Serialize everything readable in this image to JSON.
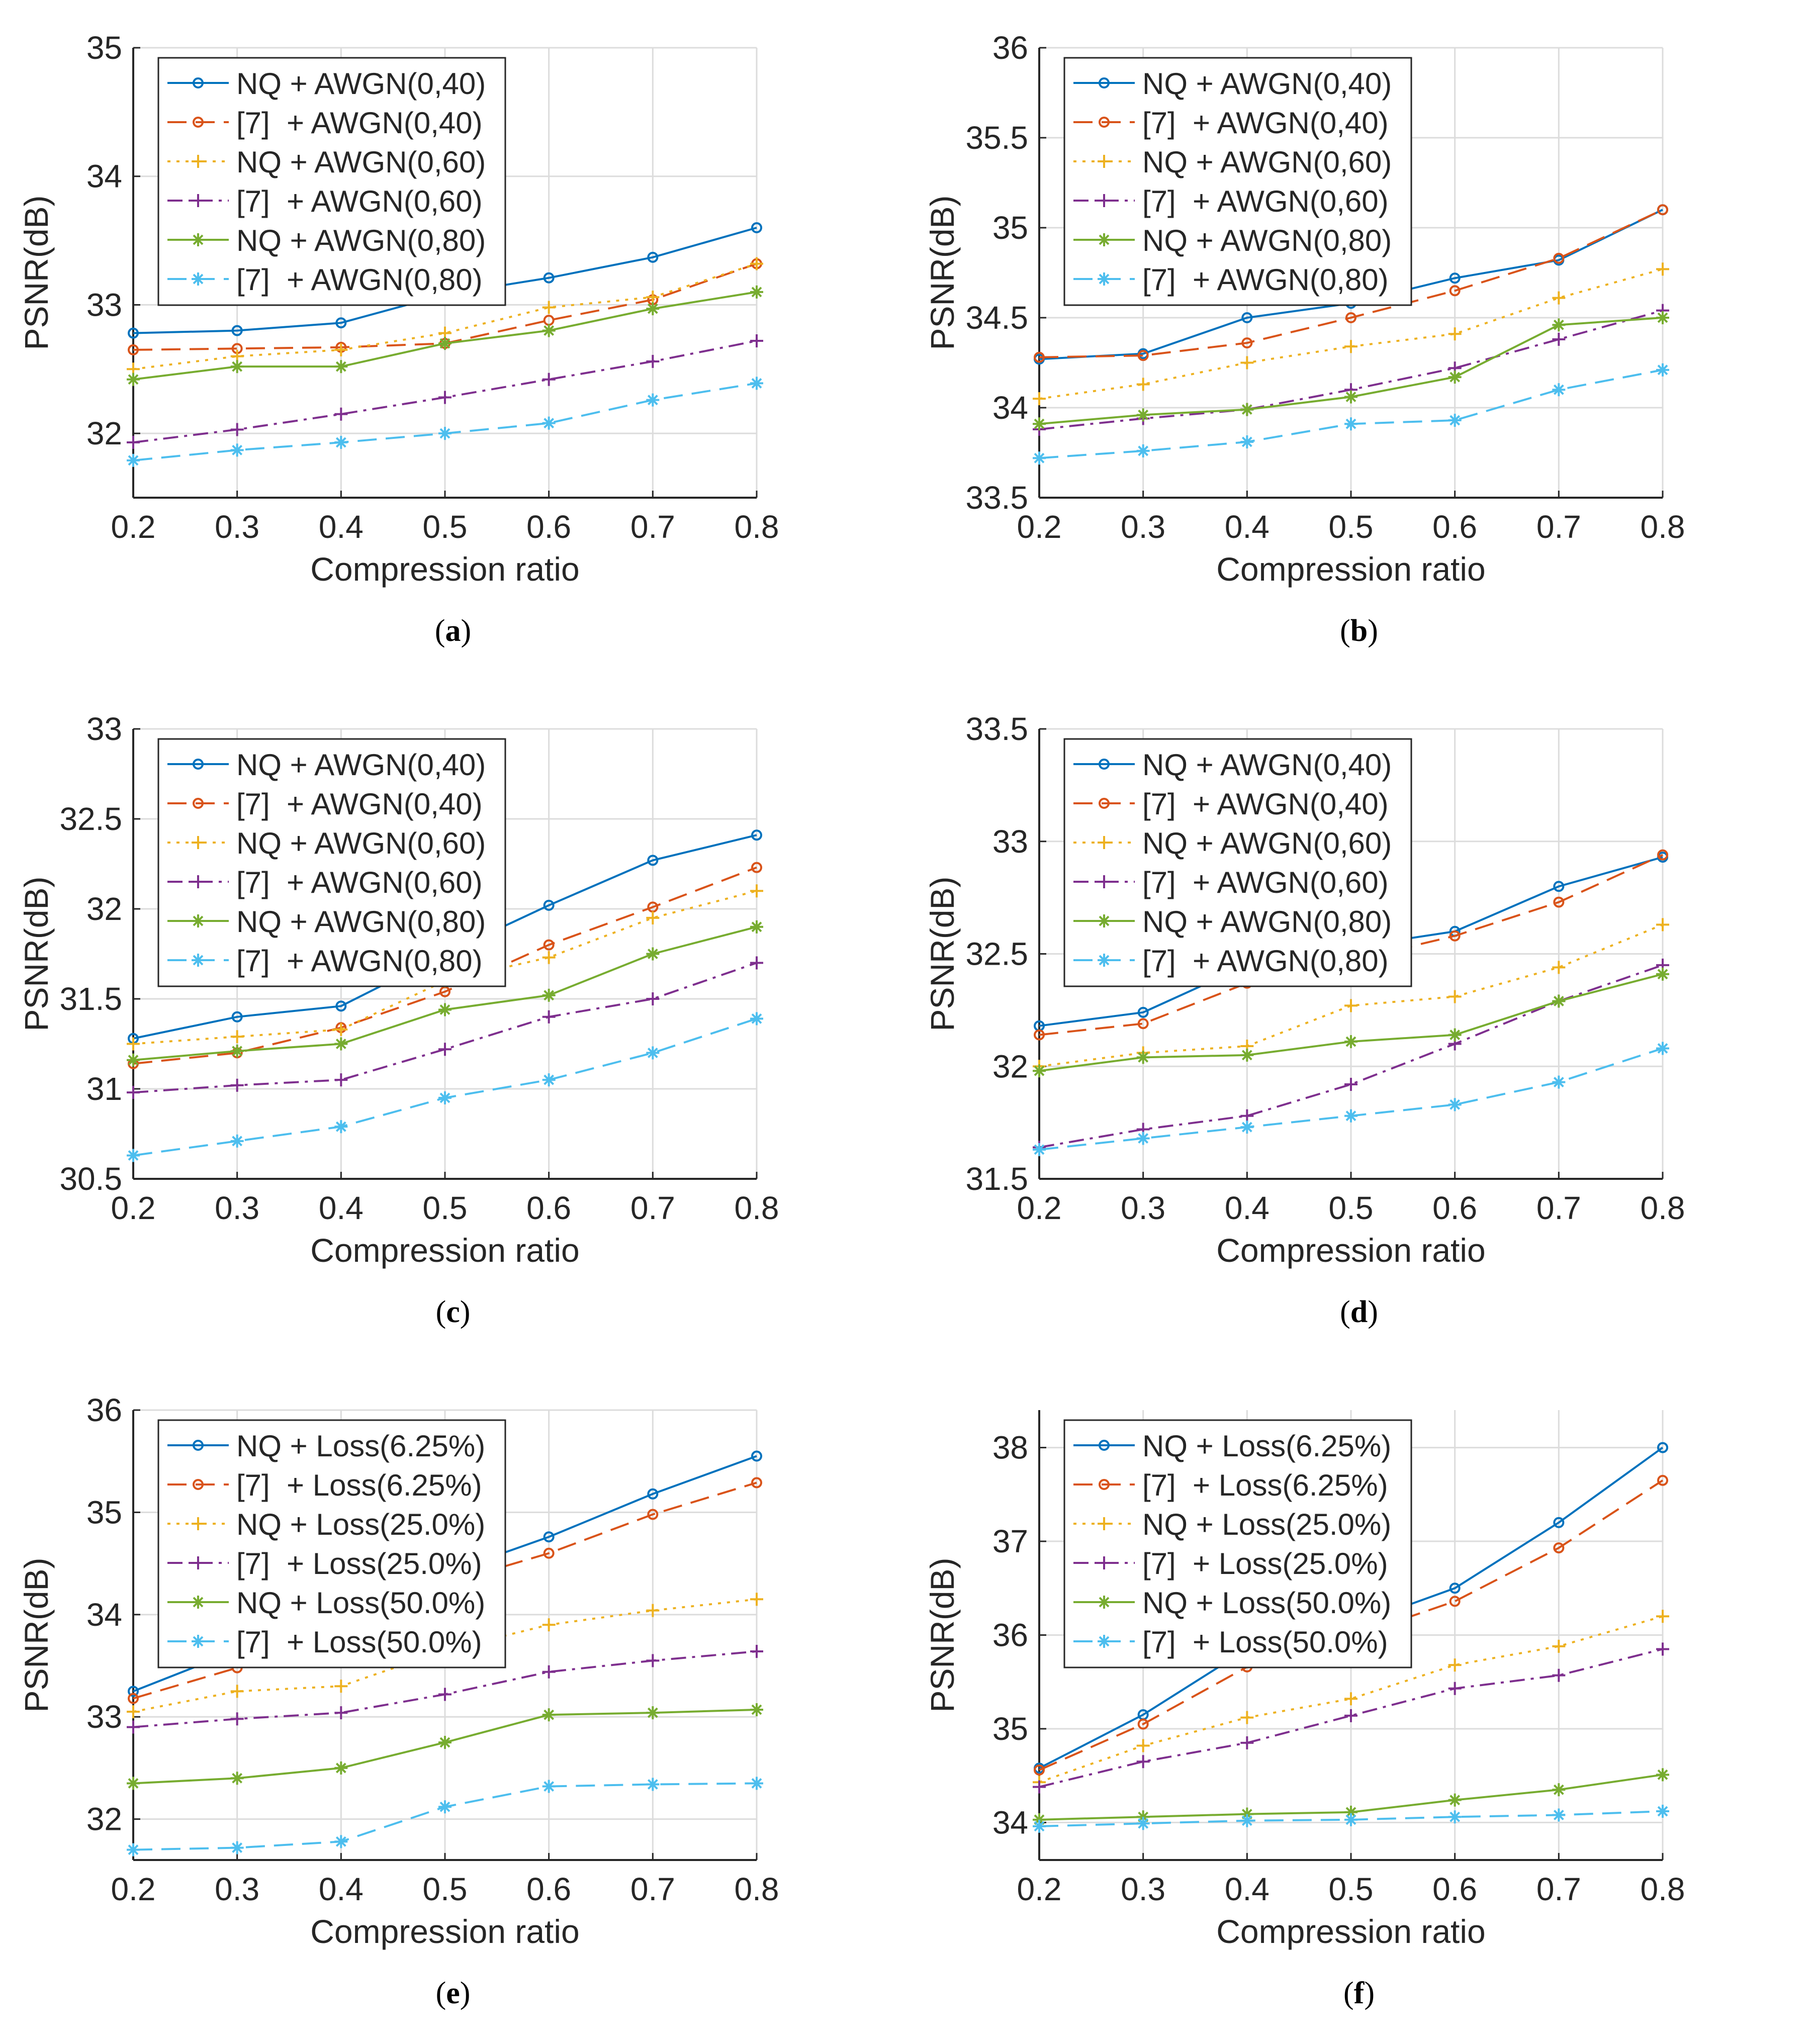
{
  "chart_data": [
    {
      "panel": "a",
      "type": "line",
      "xlabel": "Compression ratio",
      "ylabel": "PSNR(dB)",
      "xlim": [
        0.2,
        0.8
      ],
      "ylim": [
        31.5,
        35
      ],
      "xticks": [
        "0.2",
        "0.3",
        "0.4",
        "0.5",
        "0.6",
        "0.7",
        "0.8"
      ],
      "yticks": [
        "32",
        "33",
        "34",
        "35"
      ],
      "ytick_values": [
        32,
        33,
        34,
        35
      ],
      "grid": true,
      "legend_position": "top-left",
      "x": [
        0.2,
        0.3,
        0.4,
        0.5,
        0.6,
        0.7,
        0.8
      ],
      "series": [
        {
          "name": "NQ + AWGN(0,40)",
          "values": [
            32.78,
            32.8,
            32.86,
            33.08,
            33.21,
            33.37,
            33.6
          ]
        },
        {
          "name": "[7]  + AWGN(0,40)",
          "values": [
            32.65,
            32.66,
            32.67,
            32.7,
            32.88,
            33.04,
            33.32
          ]
        },
        {
          "name": "NQ + AWGN(0,60)",
          "values": [
            32.5,
            32.6,
            32.65,
            32.78,
            32.98,
            33.06,
            33.32
          ]
        },
        {
          "name": "[7]  + AWGN(0,60)",
          "values": [
            31.93,
            32.03,
            32.15,
            32.28,
            32.42,
            32.56,
            32.72
          ]
        },
        {
          "name": "NQ + AWGN(0,80)",
          "values": [
            32.42,
            32.52,
            32.52,
            32.7,
            32.8,
            32.97,
            33.1
          ]
        },
        {
          "name": "[7]  + AWGN(0,80)",
          "values": [
            31.79,
            31.87,
            31.93,
            32.0,
            32.08,
            32.26,
            32.39
          ]
        }
      ]
    },
    {
      "panel": "b",
      "type": "line",
      "xlabel": "Compression ratio",
      "ylabel": "PSNR(dB)",
      "xlim": [
        0.2,
        0.8
      ],
      "ylim": [
        33.5,
        36
      ],
      "xticks": [
        "0.2",
        "0.3",
        "0.4",
        "0.5",
        "0.6",
        "0.7",
        "0.8"
      ],
      "yticks": [
        "33.5",
        "34",
        "34.5",
        "35",
        "35.5",
        "36"
      ],
      "ytick_values": [
        33.5,
        34,
        34.5,
        35,
        35.5,
        36
      ],
      "grid": true,
      "legend_position": "top-left",
      "x": [
        0.2,
        0.3,
        0.4,
        0.5,
        0.6,
        0.7,
        0.8
      ],
      "series": [
        {
          "name": "NQ + AWGN(0,40)",
          "values": [
            34.27,
            34.3,
            34.5,
            34.58,
            34.72,
            34.82,
            35.1
          ]
        },
        {
          "name": "[7]  + AWGN(0,40)",
          "values": [
            34.28,
            34.29,
            34.36,
            34.5,
            34.65,
            34.83,
            35.1
          ]
        },
        {
          "name": "NQ + AWGN(0,60)",
          "values": [
            34.05,
            34.13,
            34.25,
            34.34,
            34.41,
            34.61,
            34.77
          ]
        },
        {
          "name": "[7]  + AWGN(0,60)",
          "values": [
            33.88,
            33.94,
            33.99,
            34.1,
            34.22,
            34.38,
            34.54
          ]
        },
        {
          "name": "NQ + AWGN(0,80)",
          "values": [
            33.91,
            33.96,
            33.99,
            34.06,
            34.17,
            34.46,
            34.5
          ]
        },
        {
          "name": "[7]  + AWGN(0,80)",
          "values": [
            33.72,
            33.76,
            33.81,
            33.91,
            33.93,
            34.1,
            34.21
          ]
        }
      ]
    },
    {
      "panel": "c",
      "type": "line",
      "xlabel": "Compression ratio",
      "ylabel": "PSNR(dB)",
      "xlim": [
        0.2,
        0.8
      ],
      "ylim": [
        30.5,
        33
      ],
      "xticks": [
        "0.2",
        "0.3",
        "0.4",
        "0.5",
        "0.6",
        "0.7",
        "0.8"
      ],
      "yticks": [
        "30.5",
        "31",
        "31.5",
        "32",
        "32.5",
        "33"
      ],
      "ytick_values": [
        30.5,
        31,
        31.5,
        32,
        32.5,
        33
      ],
      "grid": true,
      "legend_position": "top-left",
      "x": [
        0.2,
        0.3,
        0.4,
        0.5,
        0.6,
        0.7,
        0.8
      ],
      "series": [
        {
          "name": "NQ + AWGN(0,40)",
          "values": [
            31.28,
            31.4,
            31.46,
            31.75,
            32.02,
            32.27,
            32.41
          ]
        },
        {
          "name": "[7]  + AWGN(0,40)",
          "values": [
            31.14,
            31.2,
            31.34,
            31.54,
            31.8,
            32.01,
            32.23
          ]
        },
        {
          "name": "NQ + AWGN(0,60)",
          "values": [
            31.25,
            31.29,
            31.33,
            31.6,
            31.73,
            31.95,
            32.1
          ]
        },
        {
          "name": "[7]  + AWGN(0,60)",
          "values": [
            30.98,
            31.02,
            31.05,
            31.22,
            31.4,
            31.5,
            31.7
          ]
        },
        {
          "name": "NQ + AWGN(0,80)",
          "values": [
            31.16,
            31.21,
            31.25,
            31.44,
            31.52,
            31.75,
            31.9
          ]
        },
        {
          "name": "[7]  + AWGN(0,80)",
          "values": [
            30.63,
            30.71,
            30.79,
            30.95,
            31.05,
            31.2,
            31.39
          ]
        }
      ]
    },
    {
      "panel": "d",
      "type": "line",
      "xlabel": "Compression ratio",
      "ylabel": "PSNR(dB)",
      "xlim": [
        0.2,
        0.8
      ],
      "ylim": [
        31.5,
        33.5
      ],
      "xticks": [
        "0.2",
        "0.3",
        "0.4",
        "0.5",
        "0.6",
        "0.7",
        "0.8"
      ],
      "yticks": [
        "31.5",
        "32",
        "32.5",
        "33",
        "33.5"
      ],
      "ytick_values": [
        31.5,
        32,
        32.5,
        33,
        33.5
      ],
      "grid": true,
      "legend_position": "top-left",
      "x": [
        0.2,
        0.3,
        0.4,
        0.5,
        0.6,
        0.7,
        0.8
      ],
      "series": [
        {
          "name": "NQ + AWGN(0,40)",
          "values": [
            32.18,
            32.24,
            32.45,
            32.53,
            32.6,
            32.8,
            32.93
          ]
        },
        {
          "name": "[7]  + AWGN(0,40)",
          "values": [
            32.14,
            32.19,
            32.37,
            32.47,
            32.58,
            32.73,
            32.94
          ]
        },
        {
          "name": "NQ + AWGN(0,60)",
          "values": [
            32.0,
            32.06,
            32.09,
            32.27,
            32.31,
            32.44,
            32.63
          ]
        },
        {
          "name": "[7]  + AWGN(0,60)",
          "values": [
            31.64,
            31.72,
            31.78,
            31.92,
            32.1,
            32.29,
            32.45
          ]
        },
        {
          "name": "NQ + AWGN(0,80)",
          "values": [
            31.98,
            32.04,
            32.05,
            32.11,
            32.14,
            32.29,
            32.41
          ]
        },
        {
          "name": "[7]  + AWGN(0,80)",
          "values": [
            31.63,
            31.68,
            31.73,
            31.78,
            31.83,
            31.93,
            32.08
          ]
        }
      ]
    },
    {
      "panel": "e",
      "type": "line",
      "xlabel": "Compression ratio",
      "ylabel": "PSNR(dB)",
      "xlim": [
        0.2,
        0.8
      ],
      "ylim": [
        31.6,
        36
      ],
      "xticks": [
        "0.2",
        "0.3",
        "0.4",
        "0.5",
        "0.6",
        "0.7",
        "0.8"
      ],
      "yticks": [
        "32",
        "33",
        "34",
        "35",
        "36"
      ],
      "ytick_values": [
        32,
        33,
        34,
        35,
        36
      ],
      "grid": true,
      "legend_position": "top-left",
      "x": [
        0.2,
        0.3,
        0.4,
        0.5,
        0.6,
        0.7,
        0.8
      ],
      "series": [
        {
          "name": "NQ + Loss(6.25%)",
          "values": [
            33.25,
            33.65,
            33.95,
            34.4,
            34.76,
            35.18,
            35.55
          ]
        },
        {
          "name": "[7]  + Loss(6.25%)",
          "values": [
            33.18,
            33.48,
            33.9,
            34.3,
            34.6,
            34.98,
            35.29
          ]
        },
        {
          "name": "NQ + Loss(25.0%)",
          "values": [
            33.05,
            33.25,
            33.3,
            33.65,
            33.9,
            34.04,
            34.15
          ]
        },
        {
          "name": "[7]  + Loss(25.0%)",
          "values": [
            32.9,
            32.98,
            33.04,
            33.22,
            33.44,
            33.55,
            33.64
          ]
        },
        {
          "name": "NQ + Loss(50.0%)",
          "values": [
            32.35,
            32.4,
            32.5,
            32.75,
            33.02,
            33.04,
            33.07
          ]
        },
        {
          "name": "[7]  + Loss(50.0%)",
          "values": [
            31.7,
            31.72,
            31.78,
            32.12,
            32.32,
            32.34,
            32.35
          ]
        }
      ]
    },
    {
      "panel": "f",
      "type": "line",
      "xlabel": "Compression ratio",
      "ylabel": "PSNR(dB)",
      "xlim": [
        0.2,
        0.8
      ],
      "ylim": [
        33.6,
        38.4
      ],
      "xticks": [
        "0.2",
        "0.3",
        "0.4",
        "0.5",
        "0.6",
        "0.7",
        "0.8"
      ],
      "yticks": [
        "34",
        "35",
        "36",
        "37",
        "38"
      ],
      "ytick_values": [
        34,
        35,
        36,
        37,
        38
      ],
      "grid": true,
      "legend_position": "top-left",
      "x": [
        0.2,
        0.3,
        0.4,
        0.5,
        0.6,
        0.7,
        0.8
      ],
      "series": [
        {
          "name": "NQ + Loss(6.25%)",
          "values": [
            34.58,
            35.15,
            35.85,
            36.1,
            36.5,
            37.2,
            38.0
          ]
        },
        {
          "name": "[7]  + Loss(6.25%)",
          "values": [
            34.56,
            35.05,
            35.66,
            35.98,
            36.36,
            36.93,
            37.65
          ]
        },
        {
          "name": "NQ + Loss(25.0%)",
          "values": [
            34.43,
            34.82,
            35.12,
            35.32,
            35.68,
            35.88,
            36.2
          ]
        },
        {
          "name": "[7]  + Loss(25.0%)",
          "values": [
            34.38,
            34.65,
            34.85,
            35.14,
            35.43,
            35.57,
            35.85
          ]
        },
        {
          "name": "NQ + Loss(50.0%)",
          "values": [
            34.03,
            34.06,
            34.09,
            34.11,
            34.24,
            34.35,
            34.51
          ]
        },
        {
          "name": "[7]  + Loss(50.0%)",
          "values": [
            33.96,
            33.99,
            34.02,
            34.03,
            34.06,
            34.08,
            34.12
          ]
        }
      ]
    }
  ],
  "series_styles": [
    {
      "color": "#0072BD",
      "dash": "solid",
      "marker": "circle"
    },
    {
      "color": "#D95319",
      "dash": "dashed",
      "marker": "circle"
    },
    {
      "color": "#EDB120",
      "dash": "dotted",
      "marker": "plus"
    },
    {
      "color": "#7E2F8E",
      "dash": "dashdot",
      "marker": "plus"
    },
    {
      "color": "#77AC30",
      "dash": "solid",
      "marker": "asterisk"
    },
    {
      "color": "#4DBEEE",
      "dash": "dashed",
      "marker": "asterisk"
    }
  ],
  "captions": {
    "a": "a",
    "b": "b",
    "c": "c",
    "d": "d",
    "e": "e",
    "f": "f"
  }
}
